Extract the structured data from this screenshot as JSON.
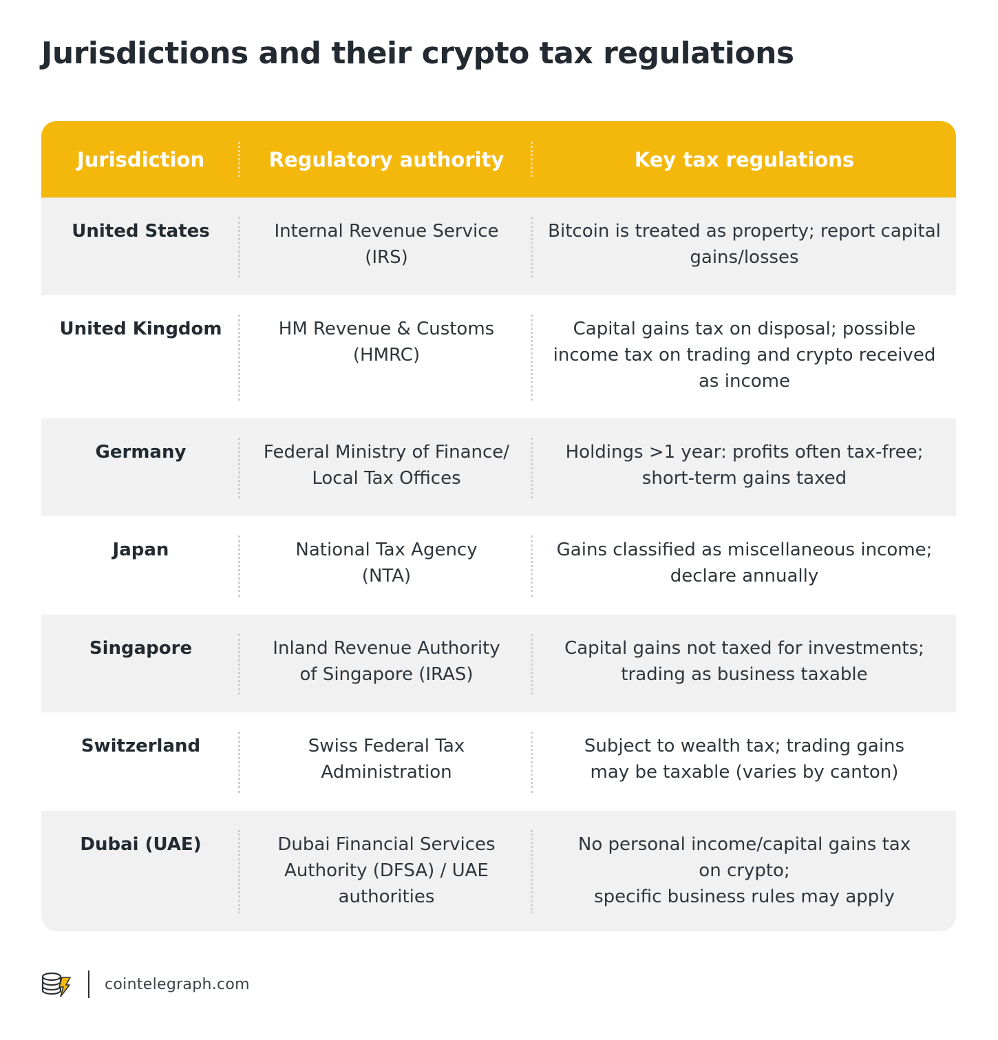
{
  "title": "Jurisdictions and their crypto tax regulations",
  "colors": {
    "header": "#f4b70c",
    "stripe": "#f1f1f1",
    "logo_accent": "#f4b70c"
  },
  "table": {
    "headers": [
      "Jurisdiction",
      "Regulatory authority",
      "Key tax regulations"
    ],
    "rows": [
      {
        "jurisdiction": "United States",
        "authority": "Internal Revenue Service\n(IRS)",
        "regulations": "Bitcoin is treated as property; report capital\ngains/losses"
      },
      {
        "jurisdiction": "United Kingdom",
        "authority": "HM Revenue & Customs\n(HMRC)",
        "regulations": "Capital gains tax on disposal; possible\nincome tax on trading and crypto received\nas income"
      },
      {
        "jurisdiction": "Germany",
        "authority": "Federal Ministry of Finance/\nLocal Tax Offices",
        "regulations": "Holdings >1 year: profits often tax-free;\nshort-term gains taxed"
      },
      {
        "jurisdiction": "Japan",
        "authority": "National Tax Agency\n(NTA)",
        "regulations": "Gains classified as miscellaneous income;\ndeclare annually"
      },
      {
        "jurisdiction": "Singapore",
        "authority": "Inland Revenue Authority\nof Singapore (IRAS)",
        "regulations": "Capital gains not taxed for investments;\ntrading as business taxable"
      },
      {
        "jurisdiction": "Switzerland",
        "authority": "Swiss Federal Tax\nAdministration",
        "regulations": "Subject to wealth tax; trading gains\nmay be taxable (varies by canton)"
      },
      {
        "jurisdiction": "Dubai (UAE)",
        "authority": "Dubai Financial Services\nAuthority (DFSA) / UAE\nauthorities",
        "regulations": "No personal income/capital gains tax\non crypto;\nspecific business rules may apply"
      }
    ]
  },
  "footer": {
    "logo_icon": "cointelegraph-logo-icon",
    "site": "cointelegraph.com"
  }
}
